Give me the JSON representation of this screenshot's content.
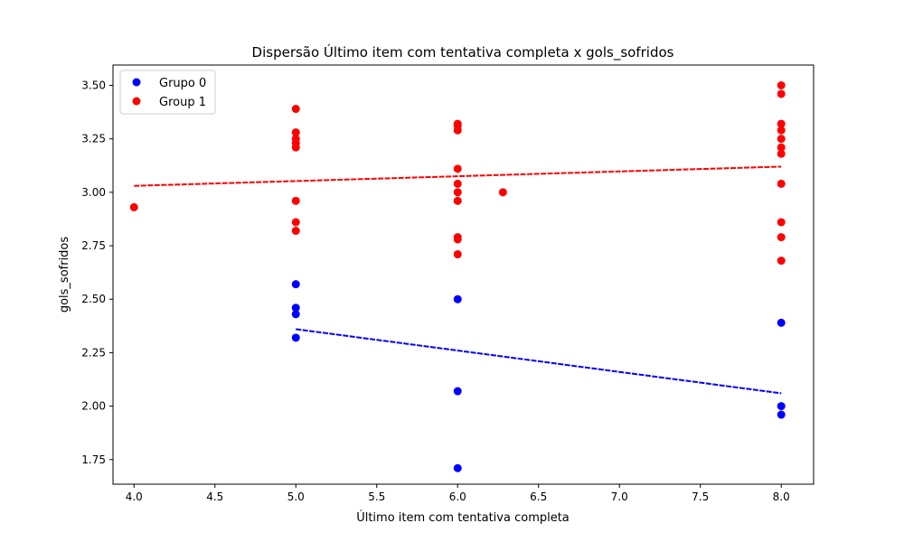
{
  "chart_data": {
    "type": "scatter",
    "title": "Dispersão Último item com tentativa completa x gols_sofridos",
    "xlabel": "Último item com tentativa completa",
    "ylabel": "gols_sofridos",
    "xlim": [
      3.87,
      8.2
    ],
    "ylim": [
      1.635,
      3.595
    ],
    "xticks": [
      "4.0",
      "4.5",
      "5.0",
      "5.5",
      "6.0",
      "6.5",
      "7.0",
      "7.5",
      "8.0"
    ],
    "yticks": [
      "1.75",
      "2.00",
      "2.25",
      "2.50",
      "2.75",
      "3.00",
      "3.25",
      "3.50"
    ],
    "legend_position": "top-left",
    "grid": false,
    "series": [
      {
        "name": "Grupo 0",
        "color": "#0000ff",
        "points": [
          [
            5,
            2.57
          ],
          [
            5,
            2.46
          ],
          [
            5,
            2.43
          ],
          [
            5,
            2.32
          ],
          [
            6,
            2.5
          ],
          [
            6,
            2.07
          ],
          [
            6,
            1.71
          ],
          [
            8,
            2.39
          ],
          [
            8,
            2.0
          ],
          [
            8,
            1.96
          ]
        ],
        "trend": [
          [
            5,
            2.36
          ],
          [
            8,
            2.06
          ]
        ]
      },
      {
        "name": "Group 1",
        "color": "#ff0000",
        "points": [
          [
            4,
            2.93
          ],
          [
            5,
            3.39
          ],
          [
            5,
            3.28
          ],
          [
            5,
            3.25
          ],
          [
            5,
            3.23
          ],
          [
            5,
            3.21
          ],
          [
            5,
            2.96
          ],
          [
            5,
            2.86
          ],
          [
            5,
            2.82
          ],
          [
            6,
            3.32
          ],
          [
            6,
            3.31
          ],
          [
            6,
            3.29
          ],
          [
            6,
            3.11
          ],
          [
            6,
            3.04
          ],
          [
            6,
            3.0
          ],
          [
            6,
            2.96
          ],
          [
            6,
            2.79
          ],
          [
            6,
            2.78
          ],
          [
            6,
            2.71
          ],
          [
            6.28,
            3.0
          ],
          [
            8,
            3.5
          ],
          [
            8,
            3.46
          ],
          [
            8,
            3.32
          ],
          [
            8,
            3.29
          ],
          [
            8,
            3.25
          ],
          [
            8,
            3.21
          ],
          [
            8,
            3.18
          ],
          [
            8,
            3.04
          ],
          [
            8,
            2.86
          ],
          [
            8,
            2.79
          ],
          [
            8,
            2.68
          ]
        ],
        "trend": [
          [
            4,
            3.03
          ],
          [
            8,
            3.12
          ]
        ]
      }
    ]
  }
}
